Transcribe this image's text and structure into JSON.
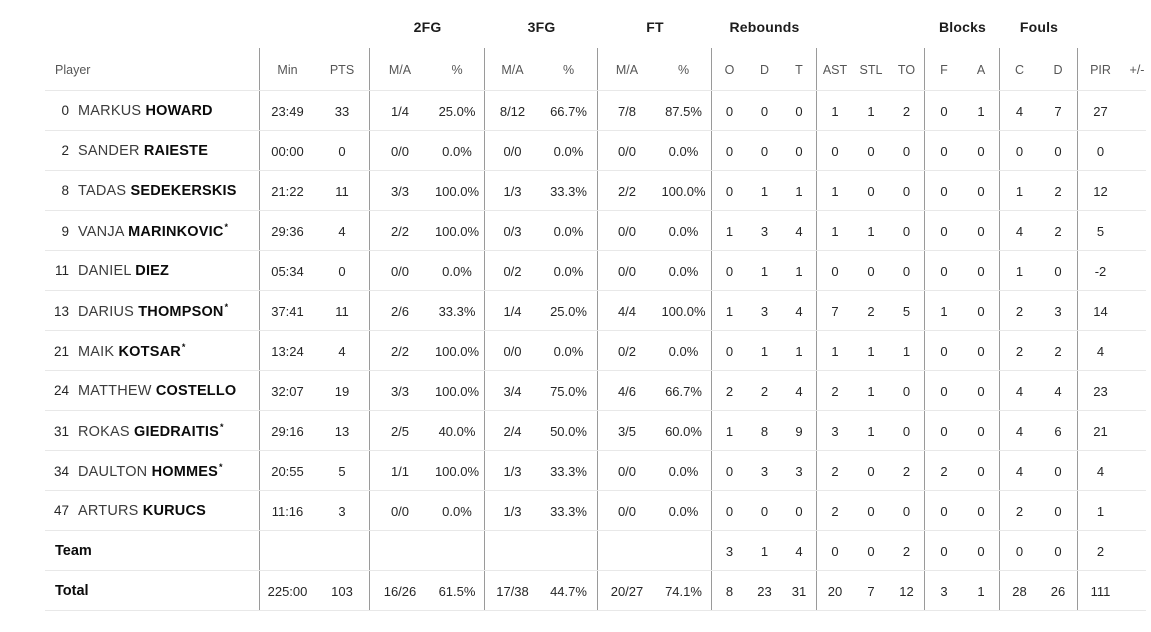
{
  "colors": {
    "divider_vertical": "#9a9a9a",
    "divider_horizontal": "#e8e8e8",
    "text_primary": "#262626",
    "text_secondary": "#565656",
    "name_last": "#0b0b0b"
  },
  "header": {
    "groups": [
      {
        "label": "2FG"
      },
      {
        "label": "3FG"
      },
      {
        "label": "FT"
      },
      {
        "label": "Rebounds"
      },
      {
        "label": "Blocks"
      },
      {
        "label": "Fouls"
      }
    ],
    "columns": [
      "Player",
      "Min",
      "PTS",
      "M/A",
      "%",
      "M/A",
      "%",
      "M/A",
      "%",
      "O",
      "D",
      "T",
      "AST",
      "STL",
      "TO",
      "F",
      "A",
      "C",
      "D",
      "PIR",
      "+/-"
    ]
  },
  "rows": [
    {
      "num": "0",
      "first": "MARKUS",
      "last": "HOWARD",
      "starter": false,
      "vals": [
        "23:49",
        "33",
        "1/4",
        "25.0%",
        "8/12",
        "66.7%",
        "7/8",
        "87.5%",
        "0",
        "0",
        "0",
        "1",
        "1",
        "2",
        "0",
        "1",
        "4",
        "7",
        "27",
        ""
      ]
    },
    {
      "num": "2",
      "first": "SANDER",
      "last": "RAIESTE",
      "starter": false,
      "vals": [
        "00:00",
        "0",
        "0/0",
        "0.0%",
        "0/0",
        "0.0%",
        "0/0",
        "0.0%",
        "0",
        "0",
        "0",
        "0",
        "0",
        "0",
        "0",
        "0",
        "0",
        "0",
        "0",
        ""
      ]
    },
    {
      "num": "8",
      "first": "TADAS",
      "last": "SEDEKERSKIS",
      "starter": false,
      "vals": [
        "21:22",
        "11",
        "3/3",
        "100.0%",
        "1/3",
        "33.3%",
        "2/2",
        "100.0%",
        "0",
        "1",
        "1",
        "1",
        "0",
        "0",
        "0",
        "0",
        "1",
        "2",
        "12",
        ""
      ]
    },
    {
      "num": "9",
      "first": "VANJA",
      "last": "MARINKOVIC",
      "starter": true,
      "vals": [
        "29:36",
        "4",
        "2/2",
        "100.0%",
        "0/3",
        "0.0%",
        "0/0",
        "0.0%",
        "1",
        "3",
        "4",
        "1",
        "1",
        "0",
        "0",
        "0",
        "4",
        "2",
        "5",
        ""
      ]
    },
    {
      "num": "11",
      "first": "DANIEL",
      "last": "DIEZ",
      "starter": false,
      "vals": [
        "05:34",
        "0",
        "0/0",
        "0.0%",
        "0/2",
        "0.0%",
        "0/0",
        "0.0%",
        "0",
        "1",
        "1",
        "0",
        "0",
        "0",
        "0",
        "0",
        "1",
        "0",
        "-2",
        ""
      ]
    },
    {
      "num": "13",
      "first": "DARIUS",
      "last": "THOMPSON",
      "starter": true,
      "vals": [
        "37:41",
        "11",
        "2/6",
        "33.3%",
        "1/4",
        "25.0%",
        "4/4",
        "100.0%",
        "1",
        "3",
        "4",
        "7",
        "2",
        "5",
        "1",
        "0",
        "2",
        "3",
        "14",
        ""
      ]
    },
    {
      "num": "21",
      "first": "MAIK",
      "last": "KOTSAR",
      "starter": true,
      "vals": [
        "13:24",
        "4",
        "2/2",
        "100.0%",
        "0/0",
        "0.0%",
        "0/2",
        "0.0%",
        "0",
        "1",
        "1",
        "1",
        "1",
        "1",
        "0",
        "0",
        "2",
        "2",
        "4",
        ""
      ]
    },
    {
      "num": "24",
      "first": "MATTHEW",
      "last": "COSTELLO",
      "starter": false,
      "vals": [
        "32:07",
        "19",
        "3/3",
        "100.0%",
        "3/4",
        "75.0%",
        "4/6",
        "66.7%",
        "2",
        "2",
        "4",
        "2",
        "1",
        "0",
        "0",
        "0",
        "4",
        "4",
        "23",
        ""
      ]
    },
    {
      "num": "31",
      "first": "ROKAS",
      "last": "GIEDRAITIS",
      "starter": true,
      "vals": [
        "29:16",
        "13",
        "2/5",
        "40.0%",
        "2/4",
        "50.0%",
        "3/5",
        "60.0%",
        "1",
        "8",
        "9",
        "3",
        "1",
        "0",
        "0",
        "0",
        "4",
        "6",
        "21",
        ""
      ]
    },
    {
      "num": "34",
      "first": "DAULTON",
      "last": "HOMMES",
      "starter": true,
      "vals": [
        "20:55",
        "5",
        "1/1",
        "100.0%",
        "1/3",
        "33.3%",
        "0/0",
        "0.0%",
        "0",
        "3",
        "3",
        "2",
        "0",
        "2",
        "2",
        "0",
        "4",
        "0",
        "4",
        ""
      ]
    },
    {
      "num": "47",
      "first": "ARTURS",
      "last": "KURUCS",
      "starter": false,
      "vals": [
        "11:16",
        "3",
        "0/0",
        "0.0%",
        "1/3",
        "33.3%",
        "0/0",
        "0.0%",
        "0",
        "0",
        "0",
        "2",
        "0",
        "0",
        "0",
        "0",
        "2",
        "0",
        "1",
        ""
      ]
    }
  ],
  "team_row": {
    "label": "Team",
    "vals": [
      "",
      "",
      "",
      "",
      "",
      "",
      "",
      "",
      "3",
      "1",
      "4",
      "0",
      "0",
      "2",
      "0",
      "0",
      "0",
      "0",
      "2",
      ""
    ]
  },
  "total_row": {
    "label": "Total",
    "vals": [
      "225:00",
      "103",
      "16/26",
      "61.5%",
      "17/38",
      "44.7%",
      "20/27",
      "74.1%",
      "8",
      "23",
      "31",
      "20",
      "7",
      "12",
      "3",
      "1",
      "28",
      "26",
      "111",
      ""
    ]
  },
  "starter_marker": "*"
}
